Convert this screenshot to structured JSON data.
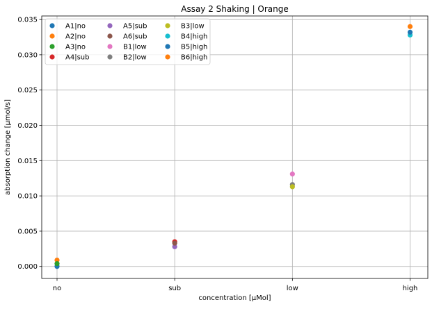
{
  "chart_data": {
    "type": "scatter",
    "title": "Assay 2 Shaking | Orange",
    "xlabel": "concentration [µMol]",
    "ylabel": "absorption change [µmol/s]",
    "categories": [
      "no",
      "sub",
      "low",
      "high"
    ],
    "ylim": [
      -0.0017,
      0.0355
    ],
    "yticks": [
      0.0,
      0.005,
      0.01,
      0.015,
      0.02,
      0.025,
      0.03,
      0.035
    ],
    "ytick_labels": [
      "0.000",
      "0.005",
      "0.010",
      "0.015",
      "0.020",
      "0.025",
      "0.030",
      "0.035"
    ],
    "grid": true,
    "legend_position": "top-left",
    "legend_columns": 3,
    "series": [
      {
        "name": "A1|no",
        "x": "no",
        "y": 0.0,
        "color": "#1f77b4"
      },
      {
        "name": "A2|no",
        "x": "no",
        "y": 0.0009,
        "color": "#ff7f0e"
      },
      {
        "name": "A3|no",
        "x": "no",
        "y": 0.0004,
        "color": "#2ca02c"
      },
      {
        "name": "A4|sub",
        "x": "sub",
        "y": 0.0035,
        "color": "#d62728"
      },
      {
        "name": "A5|sub",
        "x": "sub",
        "y": 0.0028,
        "color": "#9467bd"
      },
      {
        "name": "A6|sub",
        "x": "sub",
        "y": 0.0033,
        "color": "#8c564b"
      },
      {
        "name": "B1|low",
        "x": "low",
        "y": 0.0131,
        "color": "#e377c2"
      },
      {
        "name": "B2|low",
        "x": "low",
        "y": 0.0116,
        "color": "#7f7f7f"
      },
      {
        "name": "B3|low",
        "x": "low",
        "y": 0.0113,
        "color": "#bcbd22"
      },
      {
        "name": "B4|high",
        "x": "high",
        "y": 0.0328,
        "color": "#17becf"
      },
      {
        "name": "B5|high",
        "x": "high",
        "y": 0.0332,
        "color": "#1f77b4"
      },
      {
        "name": "B6|high",
        "x": "high",
        "y": 0.034,
        "color": "#ff7f0e"
      }
    ]
  }
}
